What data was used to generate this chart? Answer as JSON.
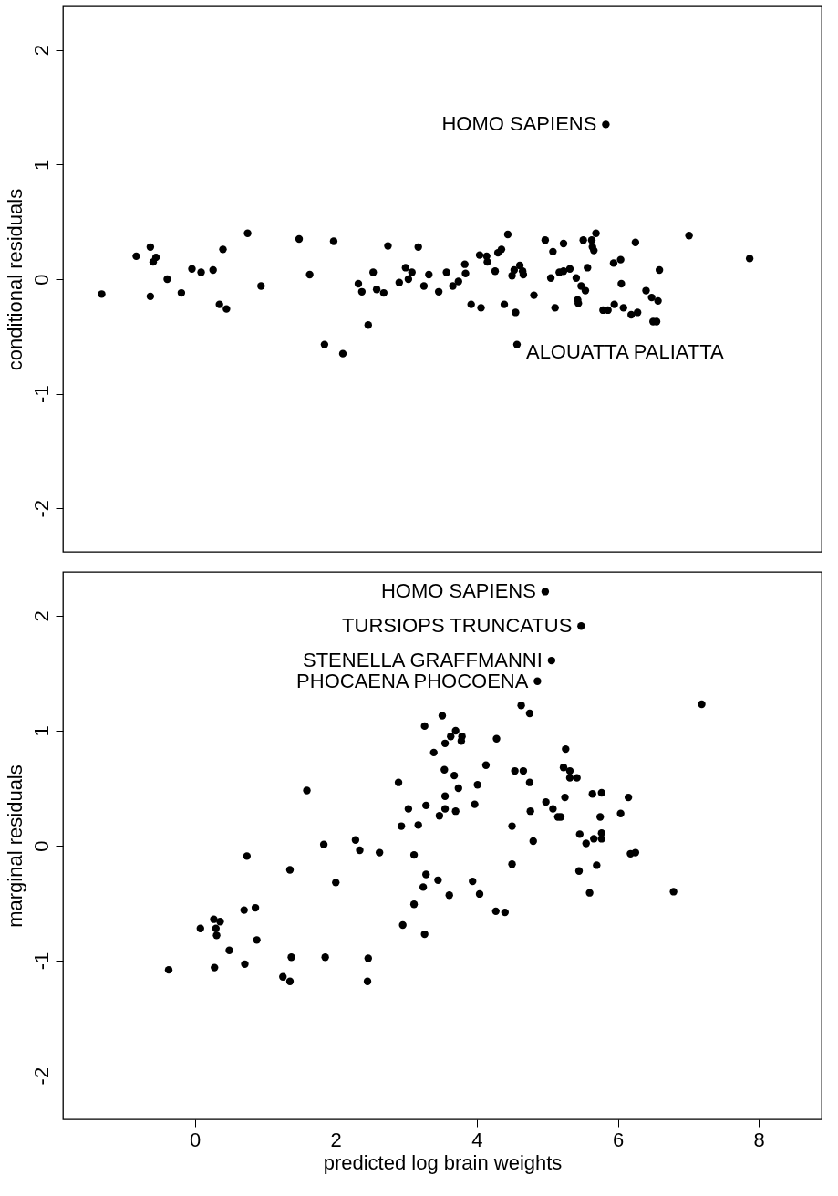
{
  "chart_data": [
    {
      "type": "scatter",
      "ylabel": "conditional residuals",
      "xlim": [
        -1.87,
        8.89
      ],
      "ylim": [
        -2.38,
        2.38
      ],
      "xticks": [
        0,
        2,
        4,
        6,
        8
      ],
      "yticks": [
        -2,
        -1,
        0,
        1,
        2
      ],
      "tick_labels": "y",
      "marker": "circle",
      "series": [
        {
          "color": "#000000",
          "x": [
            -1.32,
            -0.83,
            -0.63,
            -0.55,
            -0.59,
            -0.63,
            -0.39,
            -0.19,
            -0.04,
            0.09,
            0.26,
            0.35,
            0.4,
            0.45,
            0.75,
            0.94,
            1.48,
            1.63,
            1.84,
            1.97,
            2.1,
            2.32,
            2.37,
            2.46,
            2.53,
            2.58,
            2.68,
            2.74,
            2.9,
            2.99,
            3.03,
            3.08,
            3.17,
            3.25,
            3.32,
            3.46,
            3.57,
            3.66,
            3.74,
            3.83,
            3.84,
            3.92,
            4.04,
            4.06,
            4.14,
            4.15,
            4.26,
            4.3,
            4.35,
            4.39,
            4.44,
            4.5,
            4.53,
            4.55,
            4.61,
            4.65,
            4.66,
            4.57,
            4.81,
            4.97,
            5.05,
            5.08,
            5.11,
            5.17,
            5.23,
            5.23,
            5.32,
            5.41,
            5.43,
            5.44,
            5.48,
            5.51,
            5.54,
            5.57,
            5.63,
            5.64,
            5.66,
            5.69,
            5.79,
            5.86,
            5.94,
            5.95,
            6.04,
            6.05,
            6.08,
            6.19,
            6.25,
            6.28,
            6.4,
            6.48,
            6.5,
            6.55,
            6.57,
            6.59,
            7.01,
            7.87,
            5.83
          ],
          "values": [
            -0.13,
            0.2,
            0.28,
            0.19,
            0.15,
            -0.15,
            0.0,
            -0.12,
            0.09,
            0.06,
            0.08,
            -0.22,
            0.26,
            -0.26,
            0.4,
            -0.06,
            0.35,
            0.04,
            -0.57,
            0.33,
            -0.65,
            -0.04,
            -0.11,
            -0.4,
            0.06,
            -0.09,
            -0.12,
            0.29,
            -0.03,
            0.1,
            0.0,
            0.06,
            0.28,
            -0.06,
            0.04,
            -0.11,
            0.06,
            -0.06,
            -0.02,
            0.13,
            0.05,
            -0.22,
            0.21,
            -0.25,
            0.2,
            0.15,
            0.07,
            0.23,
            0.26,
            -0.22,
            0.39,
            0.03,
            0.08,
            -0.29,
            0.12,
            0.07,
            0.04,
            -0.57,
            -0.14,
            0.34,
            0.01,
            0.24,
            -0.25,
            0.06,
            0.07,
            0.31,
            0.09,
            0.01,
            -0.18,
            -0.21,
            -0.06,
            0.34,
            -0.1,
            0.1,
            0.34,
            0.28,
            0.25,
            0.4,
            -0.27,
            -0.27,
            0.14,
            -0.22,
            0.17,
            -0.04,
            -0.25,
            -0.31,
            0.32,
            -0.29,
            -0.1,
            -0.16,
            -0.37,
            -0.37,
            -0.19,
            0.08,
            0.38,
            0.18,
            1.35
          ]
        }
      ],
      "annotations": [
        {
          "text": "HOMO SAPIENS",
          "x": 5.83,
          "y": 1.35
        },
        {
          "text": "ALOUATTA PALIATTA",
          "x": 4.57,
          "y": -0.57
        }
      ]
    },
    {
      "type": "scatter",
      "xlabel": "predicted log brain weights",
      "ylabel": "marginal residuals",
      "xlim": [
        -1.87,
        8.89
      ],
      "ylim": [
        -2.38,
        2.38
      ],
      "xticks": [
        0,
        2,
        4,
        6,
        8
      ],
      "yticks": [
        -2,
        -1,
        0,
        1,
        2
      ],
      "marker": "circle",
      "series": [
        {
          "color": "#000000",
          "x": [
            4.97,
            5.48,
            5.06,
            4.86,
            -0.37,
            0.08,
            0.27,
            0.3,
            0.36,
            0.31,
            0.28,
            0.49,
            0.7,
            0.86,
            0.88,
            0.74,
            0.71,
            1.37,
            1.25,
            1.35,
            1.35,
            1.59,
            1.83,
            2.0,
            1.85,
            2.28,
            2.34,
            2.62,
            2.46,
            2.45,
            2.89,
            3.03,
            3.28,
            2.93,
            3.17,
            3.11,
            3.28,
            3.45,
            3.24,
            3.61,
            3.11,
            2.95,
            3.26,
            3.51,
            3.26,
            3.39,
            3.55,
            3.63,
            3.7,
            3.54,
            3.68,
            3.74,
            3.55,
            3.55,
            3.47,
            3.7,
            4.63,
            4.75,
            7.19,
            3.79,
            3.78,
            4.28,
            5.26,
            4.13,
            4.54,
            4.66,
            4.01,
            4.75,
            5.23,
            5.32,
            5.32,
            5.42,
            3.97,
            5.25,
            5.64,
            5.77,
            6.15,
            6.04,
            4.98,
            5.08,
            5.15,
            5.19,
            4.76,
            5.75,
            4.5,
            4.8,
            5.46,
            5.77,
            5.55,
            5.66,
            5.77,
            6.18,
            6.25,
            4.5,
            5.45,
            5.7,
            3.94,
            4.04,
            5.6,
            6.79,
            4.27,
            4.4
          ],
          "values": [
            2.21,
            1.91,
            1.61,
            1.43,
            -1.08,
            -0.72,
            -0.64,
            -0.72,
            -0.66,
            -0.78,
            -1.06,
            -0.91,
            -0.56,
            -0.54,
            -0.82,
            -0.09,
            -1.03,
            -0.97,
            -1.14,
            -1.18,
            -0.21,
            0.48,
            0.01,
            -0.32,
            -0.97,
            0.05,
            -0.04,
            -0.06,
            -0.98,
            -1.18,
            0.55,
            0.32,
            0.35,
            0.17,
            0.18,
            -0.08,
            -0.25,
            -0.3,
            -0.36,
            -0.43,
            -0.51,
            -0.69,
            -0.77,
            1.13,
            1.04,
            0.81,
            0.89,
            0.95,
            1.0,
            0.66,
            0.61,
            0.5,
            0.43,
            0.32,
            0.26,
            0.3,
            1.22,
            1.15,
            1.23,
            0.95,
            0.91,
            0.93,
            0.84,
            0.7,
            0.65,
            0.65,
            0.53,
            0.55,
            0.68,
            0.65,
            0.59,
            0.59,
            0.36,
            0.42,
            0.45,
            0.46,
            0.42,
            0.28,
            0.38,
            0.32,
            0.25,
            0.25,
            0.3,
            0.25,
            0.17,
            0.04,
            0.1,
            0.11,
            0.02,
            0.06,
            0.06,
            -0.07,
            -0.06,
            -0.16,
            -0.22,
            -0.17,
            -0.31,
            -0.42,
            -0.41,
            -0.4,
            -0.57,
            -0.58
          ]
        }
      ],
      "annotations": [
        {
          "text": "HOMO SAPIENS",
          "x": 4.97,
          "y": 2.21
        },
        {
          "text": "TURSIOPS TRUNCATUS",
          "x": 5.48,
          "y": 1.91
        },
        {
          "text": "STENELLA GRAFFMANNI",
          "x": 5.06,
          "y": 1.61
        },
        {
          "text": "PHOCAENA PHOCOENA",
          "x": 4.86,
          "y": 1.43
        }
      ]
    }
  ]
}
